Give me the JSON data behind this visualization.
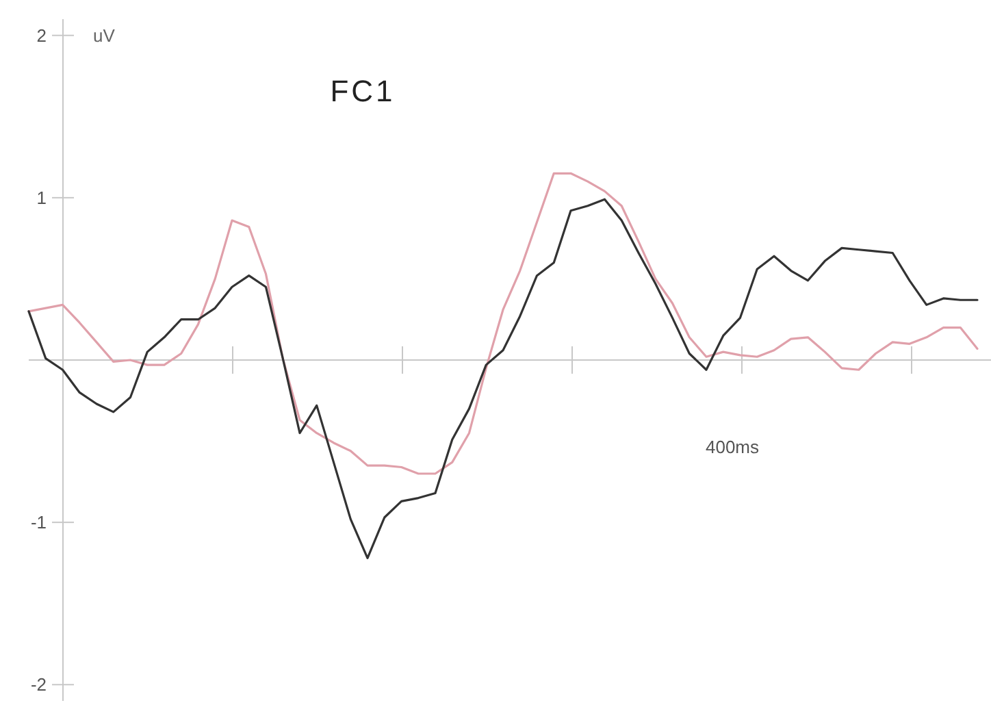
{
  "chart_data": {
    "type": "line",
    "title": "FC1",
    "ylabel": "uV",
    "ylim": [
      -2.1,
      2.1
    ],
    "annotations": [
      "400ms"
    ],
    "categories": [
      null,
      null,
      null,
      null,
      null,
      null,
      null,
      null,
      null,
      null,
      null,
      null,
      null,
      null,
      null,
      null,
      null,
      null,
      null,
      null,
      null,
      null,
      null,
      null,
      null,
      null,
      null,
      null,
      null,
      null,
      null,
      null,
      null,
      null,
      null,
      null,
      null,
      null,
      null,
      null,
      null,
      null,
      null,
      null,
      null,
      null,
      null,
      null,
      null,
      null,
      null,
      null,
      null,
      null,
      null,
      null,
      null
    ],
    "yticks": [
      {
        "value": -2,
        "label": "-2"
      },
      {
        "value": -1,
        "label": "-1"
      },
      {
        "value": 0,
        "label": null
      },
      {
        "value": 1,
        "label": "1"
      },
      {
        "value": 2,
        "label": "2"
      }
    ],
    "marker": "none",
    "line_style": "solid",
    "series": [
      {
        "color": "#e0a0aa",
        "values": [
          0.3,
          0.32,
          0.34,
          0.23,
          0.11,
          -0.01,
          0,
          -0.03,
          -0.03,
          0.04,
          0.22,
          0.5,
          0.86,
          0.82,
          0.53,
          0.01,
          -0.37,
          -0.45,
          -0.51,
          -0.56,
          -0.65,
          -0.65,
          -0.66,
          -0.7,
          -0.7,
          -0.63,
          -0.45,
          -0.05,
          0.31,
          0.55,
          0.85,
          1.15,
          1.15,
          1.1,
          1.04,
          0.95,
          0.73,
          0.5,
          0.35,
          0.14,
          0.02,
          0.05,
          0.03,
          0.02,
          0.06,
          0.13,
          0.14,
          0.05,
          -0.05,
          -0.06,
          0.04,
          0.11,
          0.1,
          0.14,
          0.2,
          0.2,
          0.07
        ]
      },
      {
        "color": "#333333",
        "values": [
          0.3,
          0.01,
          -0.06,
          -0.2,
          -0.27,
          -0.32,
          -0.23,
          0.05,
          0.14,
          0.25,
          0.25,
          0.32,
          0.45,
          0.52,
          0.45,
          0.01,
          -0.45,
          -0.28,
          -0.63,
          -0.98,
          -1.22,
          -0.97,
          -0.87,
          -0.85,
          -0.82,
          -0.49,
          -0.3,
          -0.03,
          0.06,
          0.27,
          0.52,
          0.6,
          0.92,
          0.95,
          0.99,
          0.86,
          0.66,
          0.47,
          0.26,
          0.04,
          -0.06,
          0.15,
          0.26,
          0.56,
          0.64,
          0.55,
          0.49,
          0.61,
          0.69,
          0.68,
          0.67,
          0.66,
          0.49,
          0.34,
          0.38,
          0.37,
          0.37
        ]
      }
    ]
  }
}
